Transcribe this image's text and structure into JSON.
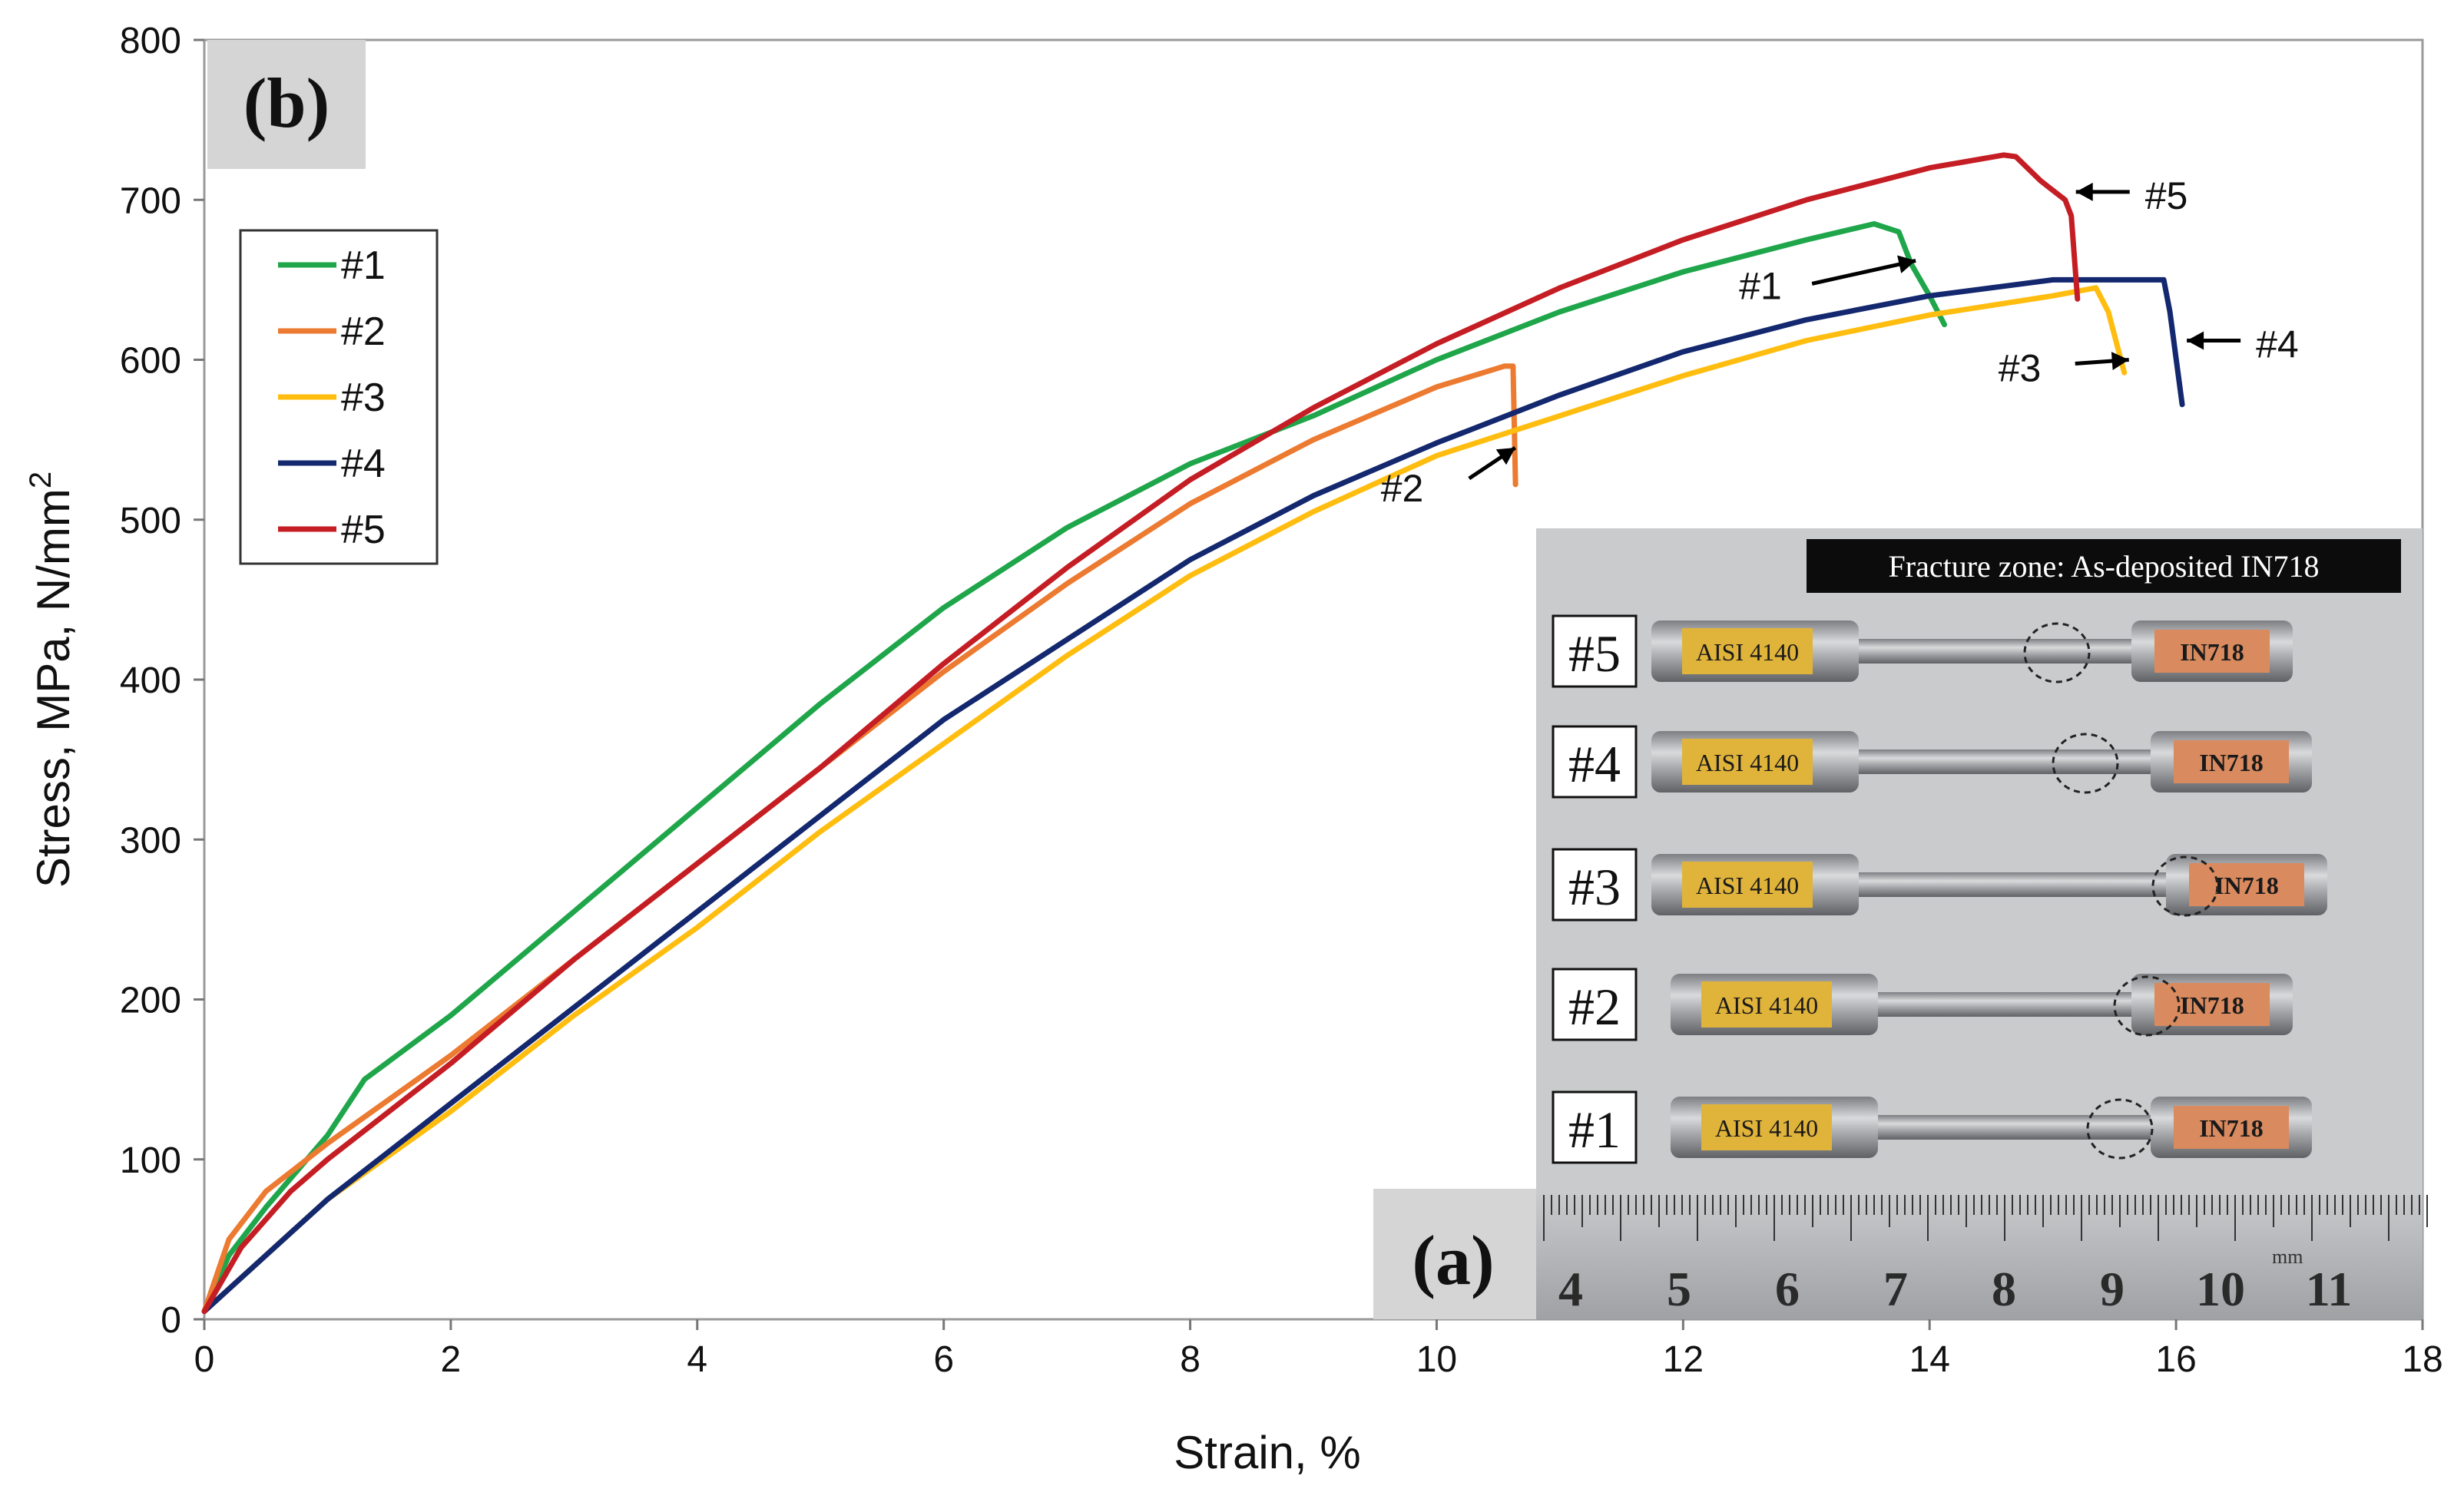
{
  "chart_data": {
    "type": "line",
    "title": "",
    "panel_label": "(b)",
    "xlabel": "Strain, %",
    "ylabel_main": "Stress, MPa, N/mm",
    "ylabel_sup": "2",
    "xlim": [
      0,
      18
    ],
    "ylim": [
      0,
      800
    ],
    "xticks": [
      0,
      2,
      4,
      6,
      8,
      10,
      12,
      14,
      16,
      18
    ],
    "yticks": [
      0,
      100,
      200,
      300,
      400,
      500,
      600,
      700,
      800
    ],
    "grid": false,
    "legend_position": "top-left",
    "series": [
      {
        "name": "#1",
        "color": "#1fa64a",
        "points": [
          [
            0,
            5
          ],
          [
            0.2,
            40
          ],
          [
            0.5,
            70
          ],
          [
            1.0,
            115
          ],
          [
            1.3,
            150
          ],
          [
            2,
            190
          ],
          [
            3,
            255
          ],
          [
            4,
            320
          ],
          [
            5,
            385
          ],
          [
            6,
            445
          ],
          [
            7,
            495
          ],
          [
            8,
            535
          ],
          [
            9,
            565
          ],
          [
            10,
            600
          ],
          [
            11,
            630
          ],
          [
            12,
            655
          ],
          [
            13,
            675
          ],
          [
            13.55,
            685
          ],
          [
            13.75,
            680
          ],
          [
            13.85,
            660
          ],
          [
            14.0,
            640
          ],
          [
            14.12,
            622
          ]
        ]
      },
      {
        "name": "#2",
        "color": "#ec7a30",
        "points": [
          [
            0,
            5
          ],
          [
            0.2,
            50
          ],
          [
            0.5,
            80
          ],
          [
            1.0,
            110
          ],
          [
            2,
            165
          ],
          [
            3,
            225
          ],
          [
            4,
            285
          ],
          [
            5,
            345
          ],
          [
            6,
            405
          ],
          [
            7,
            460
          ],
          [
            8,
            510
          ],
          [
            9,
            550
          ],
          [
            10,
            583
          ],
          [
            10.55,
            596
          ],
          [
            10.62,
            596
          ],
          [
            10.63,
            560
          ],
          [
            10.64,
            522
          ]
        ]
      },
      {
        "name": "#3",
        "color": "#ffbd0f",
        "points": [
          [
            0,
            5
          ],
          [
            0.5,
            40
          ],
          [
            1,
            75
          ],
          [
            2,
            130
          ],
          [
            3,
            190
          ],
          [
            4,
            245
          ],
          [
            5,
            305
          ],
          [
            6,
            360
          ],
          [
            7,
            415
          ],
          [
            8,
            465
          ],
          [
            9,
            505
          ],
          [
            10,
            540
          ],
          [
            11,
            565
          ],
          [
            12,
            590
          ],
          [
            13,
            612
          ],
          [
            14,
            628
          ],
          [
            15,
            640
          ],
          [
            15.35,
            645
          ],
          [
            15.45,
            630
          ],
          [
            15.58,
            592
          ]
        ]
      },
      {
        "name": "#4",
        "color": "#13286e",
        "points": [
          [
            0,
            5
          ],
          [
            0.5,
            40
          ],
          [
            1,
            75
          ],
          [
            2,
            135
          ],
          [
            3,
            195
          ],
          [
            4,
            255
          ],
          [
            5,
            315
          ],
          [
            6,
            375
          ],
          [
            7,
            425
          ],
          [
            8,
            475
          ],
          [
            9,
            515
          ],
          [
            10,
            548
          ],
          [
            11,
            578
          ],
          [
            12,
            605
          ],
          [
            13,
            625
          ],
          [
            14,
            640
          ],
          [
            15,
            650
          ],
          [
            15.9,
            650
          ],
          [
            15.95,
            630
          ],
          [
            16.05,
            572
          ]
        ]
      },
      {
        "name": "#5",
        "color": "#c51d24",
        "points": [
          [
            0,
            5
          ],
          [
            0.3,
            45
          ],
          [
            0.7,
            80
          ],
          [
            1.0,
            100
          ],
          [
            2,
            160
          ],
          [
            3,
            225
          ],
          [
            4,
            285
          ],
          [
            5,
            345
          ],
          [
            6,
            410
          ],
          [
            7,
            470
          ],
          [
            8,
            525
          ],
          [
            9,
            570
          ],
          [
            10,
            610
          ],
          [
            11,
            645
          ],
          [
            12,
            675
          ],
          [
            13,
            700
          ],
          [
            14,
            720
          ],
          [
            14.6,
            728
          ],
          [
            14.7,
            727
          ],
          [
            14.9,
            712
          ],
          [
            15.1,
            700
          ],
          [
            15.15,
            690
          ],
          [
            15.2,
            638
          ]
        ]
      }
    ],
    "annotations": [
      {
        "label": "#1",
        "series": "#1"
      },
      {
        "label": "#2",
        "series": "#2"
      },
      {
        "label": "#3",
        "series": "#3"
      },
      {
        "label": "#4",
        "series": "#4"
      },
      {
        "label": "#5",
        "series": "#5"
      }
    ]
  },
  "inset": {
    "label": "(a)",
    "title": "Fracture zone: As-deposited IN718",
    "specimens": [
      {
        "id": "#5",
        "left_label": "AISI 4140",
        "right_label": "IN718"
      },
      {
        "id": "#4",
        "left_label": "AISI 4140",
        "right_label": "IN718"
      },
      {
        "id": "#3",
        "left_label": "AISI 4140",
        "right_label": "IN718"
      },
      {
        "id": "#2",
        "left_label": "AISI 4140",
        "right_label": "IN718"
      },
      {
        "id": "#1",
        "left_label": "AISI 4140",
        "right_label": "IN718"
      }
    ],
    "ruler_numbers": [
      "4",
      "5",
      "6",
      "7",
      "8",
      "9",
      "10",
      "11"
    ],
    "ruler_unit": "mm"
  }
}
